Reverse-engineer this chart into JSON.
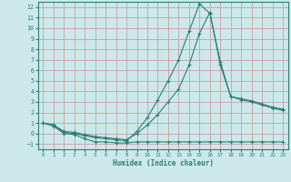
{
  "xlabel": "Humidex (Indice chaleur)",
  "background_color": "#cce8ea",
  "grid_color": "#c8a0a0",
  "line_color": "#2e7d72",
  "xlim": [
    -0.5,
    23.5
  ],
  "ylim": [
    -1.5,
    12.5
  ],
  "xticks": [
    0,
    1,
    2,
    3,
    4,
    5,
    6,
    7,
    8,
    9,
    10,
    11,
    12,
    13,
    14,
    15,
    16,
    17,
    18,
    19,
    20,
    21,
    22,
    23
  ],
  "yticks": [
    -1,
    0,
    1,
    2,
    3,
    4,
    5,
    6,
    7,
    8,
    9,
    10,
    11,
    12
  ],
  "curve1_x": [
    0,
    1,
    2,
    3,
    4,
    5,
    6,
    7,
    8,
    9,
    10,
    11,
    12,
    13,
    14,
    15,
    16,
    17,
    18,
    19,
    20,
    21,
    22,
    23
  ],
  "curve1_y": [
    1.0,
    0.7,
    0.0,
    -0.1,
    -0.5,
    -0.8,
    -0.8,
    -0.9,
    -0.9,
    -0.8,
    -0.8,
    -0.8,
    -0.8,
    -0.8,
    -0.8,
    -0.8,
    -0.8,
    -0.8,
    -0.8,
    -0.8,
    -0.8,
    -0.8,
    -0.8,
    -0.8
  ],
  "curve2_x": [
    0,
    1,
    2,
    3,
    4,
    5,
    6,
    7,
    8,
    9,
    10,
    11,
    12,
    13,
    14,
    15,
    16,
    17,
    18,
    19,
    20,
    21,
    22,
    23
  ],
  "curve2_y": [
    1.0,
    0.8,
    0.1,
    0.0,
    -0.2,
    -0.4,
    -0.5,
    -0.6,
    -0.7,
    0.2,
    1.5,
    3.2,
    5.0,
    7.0,
    9.7,
    12.3,
    11.4,
    6.8,
    3.5,
    3.3,
    3.1,
    2.8,
    2.5,
    2.3
  ],
  "curve3_x": [
    0,
    1,
    2,
    3,
    4,
    5,
    6,
    7,
    8,
    9,
    10,
    11,
    12,
    13,
    14,
    15,
    16,
    17,
    18,
    19,
    20,
    21,
    22,
    23
  ],
  "curve3_y": [
    1.0,
    0.8,
    0.2,
    0.1,
    -0.1,
    -0.3,
    -0.4,
    -0.5,
    -0.6,
    0.0,
    0.8,
    1.8,
    3.0,
    4.2,
    6.5,
    9.5,
    11.5,
    6.5,
    3.5,
    3.2,
    3.0,
    2.7,
    2.4,
    2.2
  ]
}
